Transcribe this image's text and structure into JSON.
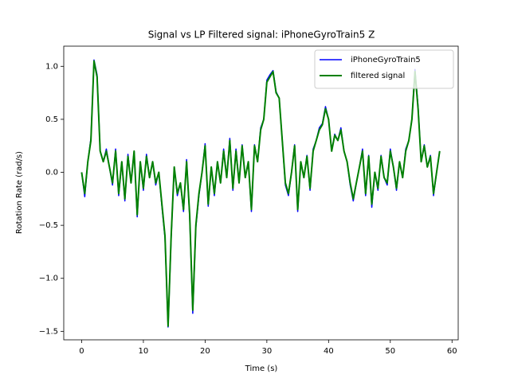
{
  "chart_data": {
    "type": "line",
    "title": "Signal vs LP Filtered signal: iPhoneGyroTrain5 Z",
    "x_label": "Time (s)",
    "y_label": "Rotation Rate (rad/s)",
    "x": [
      0,
      0.5,
      1,
      1.5,
      2,
      2.5,
      3,
      3.5,
      4,
      4.5,
      5,
      5.5,
      6,
      6.5,
      7,
      7.5,
      8,
      8.5,
      9,
      9.5,
      10,
      10.5,
      11,
      11.5,
      12,
      12.5,
      13,
      13.5,
      14,
      14.5,
      15,
      15.5,
      16,
      16.5,
      17,
      17.5,
      18,
      18.5,
      19,
      19.5,
      20,
      20.5,
      21,
      21.5,
      22,
      22.5,
      23,
      23.5,
      24,
      24.5,
      25,
      25.5,
      26,
      26.5,
      27,
      27.5,
      28,
      28.5,
      29,
      29.5,
      30,
      30.5,
      31,
      31.5,
      32,
      32.5,
      33,
      33.5,
      34,
      34.5,
      35,
      35.5,
      36,
      36.5,
      37,
      37.5,
      38,
      38.5,
      39,
      39.5,
      40,
      40.5,
      41,
      41.5,
      42,
      42.5,
      43,
      43.5,
      44,
      44.5,
      45,
      45.5,
      46,
      46.5,
      47,
      47.5,
      48,
      48.5,
      49,
      49.5,
      50,
      50.5,
      51,
      51.5,
      52,
      52.5,
      53,
      53.5,
      54,
      54.5,
      55,
      55.5,
      56,
      56.5,
      57,
      57.5,
      58
    ],
    "series": [
      {
        "name": "iPhoneGyroTrain5",
        "color": "#0000ff",
        "values": [
          0.0,
          -0.23,
          0.1,
          0.32,
          1.06,
          0.92,
          0.2,
          0.1,
          0.22,
          0.05,
          -0.12,
          0.22,
          -0.22,
          0.1,
          -0.27,
          0.17,
          -0.1,
          0.2,
          -0.42,
          0.1,
          -0.17,
          0.17,
          -0.05,
          0.1,
          -0.12,
          0.0,
          -0.32,
          -0.62,
          -1.46,
          -0.62,
          0.05,
          -0.22,
          -0.1,
          -0.37,
          0.12,
          -0.42,
          -1.33,
          -0.52,
          -0.22,
          0.0,
          0.27,
          -0.32,
          0.05,
          -0.22,
          0.1,
          -0.1,
          0.22,
          -0.05,
          0.32,
          -0.17,
          0.22,
          -0.1,
          0.26,
          -0.05,
          0.1,
          -0.37,
          0.26,
          0.1,
          0.42,
          0.5,
          0.87,
          0.92,
          0.96,
          0.76,
          0.7,
          0.3,
          -0.12,
          -0.22,
          0.0,
          0.26,
          -0.37,
          0.1,
          -0.05,
          0.16,
          -0.17,
          0.22,
          0.3,
          0.42,
          0.46,
          0.62,
          0.5,
          0.2,
          0.36,
          0.3,
          0.42,
          0.2,
          0.1,
          -0.12,
          -0.27,
          -0.1,
          0.05,
          0.22,
          -0.22,
          0.16,
          -0.33,
          0.0,
          -0.17,
          0.16,
          -0.05,
          -0.12,
          0.22,
          0.05,
          -0.17,
          0.1,
          -0.05,
          0.22,
          0.3,
          0.5,
          0.97,
          0.62,
          0.1,
          0.26,
          0.05,
          0.16,
          -0.22,
          0.0,
          0.2
        ]
      },
      {
        "name": "filtered signal",
        "color": "#008000",
        "values": [
          0.0,
          -0.2,
          0.1,
          0.3,
          1.05,
          0.9,
          0.2,
          0.1,
          0.2,
          0.05,
          -0.1,
          0.2,
          -0.2,
          0.1,
          -0.25,
          0.15,
          -0.1,
          0.2,
          -0.4,
          0.1,
          -0.15,
          0.15,
          -0.05,
          0.1,
          -0.1,
          0.0,
          -0.3,
          -0.6,
          -1.45,
          -0.6,
          0.05,
          -0.2,
          -0.1,
          -0.35,
          0.1,
          -0.4,
          -1.3,
          -0.5,
          -0.2,
          0.0,
          0.25,
          -0.3,
          0.05,
          -0.2,
          0.1,
          -0.1,
          0.2,
          -0.05,
          0.3,
          -0.15,
          0.2,
          -0.1,
          0.25,
          -0.05,
          0.1,
          -0.35,
          0.25,
          0.1,
          0.4,
          0.5,
          0.85,
          0.9,
          0.95,
          0.75,
          0.7,
          0.3,
          -0.1,
          -0.2,
          0.0,
          0.25,
          -0.35,
          0.1,
          -0.05,
          0.15,
          -0.15,
          0.2,
          0.3,
          0.4,
          0.45,
          0.6,
          0.5,
          0.2,
          0.35,
          0.3,
          0.4,
          0.2,
          0.1,
          -0.1,
          -0.25,
          -0.1,
          0.05,
          0.2,
          -0.2,
          0.15,
          -0.3,
          0.0,
          -0.15,
          0.15,
          -0.05,
          -0.1,
          0.2,
          0.05,
          -0.15,
          0.1,
          -0.05,
          0.2,
          0.3,
          0.5,
          0.95,
          0.6,
          0.1,
          0.25,
          0.05,
          0.15,
          -0.2,
          0.0,
          0.2
        ]
      }
    ],
    "xlim": [
      -2.9,
      61
    ],
    "ylim": [
      -1.58,
      1.19
    ],
    "xticks": [
      0,
      10,
      20,
      30,
      40,
      50,
      60
    ],
    "yticks": [
      {
        "value": -1.5,
        "label": "−1.5"
      },
      {
        "value": -1.0,
        "label": "−1.0"
      },
      {
        "value": -0.5,
        "label": "−0.5"
      },
      {
        "value": 0.0,
        "label": "0.0"
      },
      0.5,
      {
        "value": 1.0,
        "label": "1.0"
      }
    ],
    "legend": "upper right"
  }
}
